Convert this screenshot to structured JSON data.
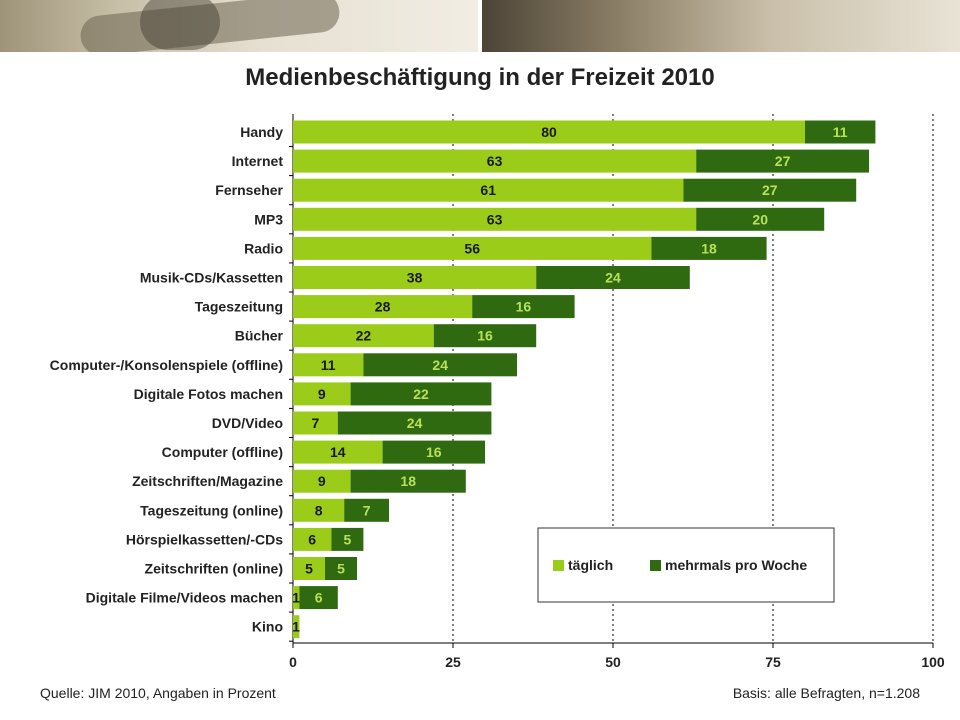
{
  "title": "Medienbeschäftigung in der Freizeit 2010",
  "source_note": "Quelle: JIM 2010, Angaben in Prozent",
  "basis_note": "Basis: alle Befragten, n=1.208",
  "colors": {
    "taeglich": "#9bcc1a",
    "mehrmals": "#2f6a10",
    "axis": "#000000",
    "grid": "#000000"
  },
  "chart_data": {
    "type": "bar",
    "orientation": "horizontal",
    "stacked": true,
    "title": "Medienbeschäftigung in der Freizeit 2010",
    "categories": [
      "Handy",
      "Internet",
      "Fernseher",
      "MP3",
      "Radio",
      "Musik-CDs/Kassetten",
      "Tageszeitung",
      "Bücher",
      "Computer-/Konsolenspiele (offline)",
      "Digitale Fotos machen",
      "DVD/Video",
      "Computer (offline)",
      "Zeitschriften/Magazine",
      "Tageszeitung (online)",
      "Hörspielkassetten/-CDs",
      "Zeitschriften (online)",
      "Digitale Filme/Videos machen",
      "Kino"
    ],
    "series": [
      {
        "name": "täglich",
        "values": [
          80,
          63,
          61,
          63,
          56,
          38,
          28,
          22,
          11,
          9,
          7,
          14,
          9,
          8,
          6,
          5,
          1,
          1
        ]
      },
      {
        "name": "mehrmals pro Woche",
        "values": [
          11,
          27,
          27,
          20,
          18,
          24,
          16,
          16,
          24,
          22,
          24,
          16,
          18,
          7,
          5,
          5,
          6,
          null
        ]
      }
    ],
    "xlim": [
      0,
      100
    ],
    "xticks": [
      0,
      25,
      50,
      75,
      100
    ],
    "grid": "vertical dotted",
    "legend_position": "lower-right"
  }
}
